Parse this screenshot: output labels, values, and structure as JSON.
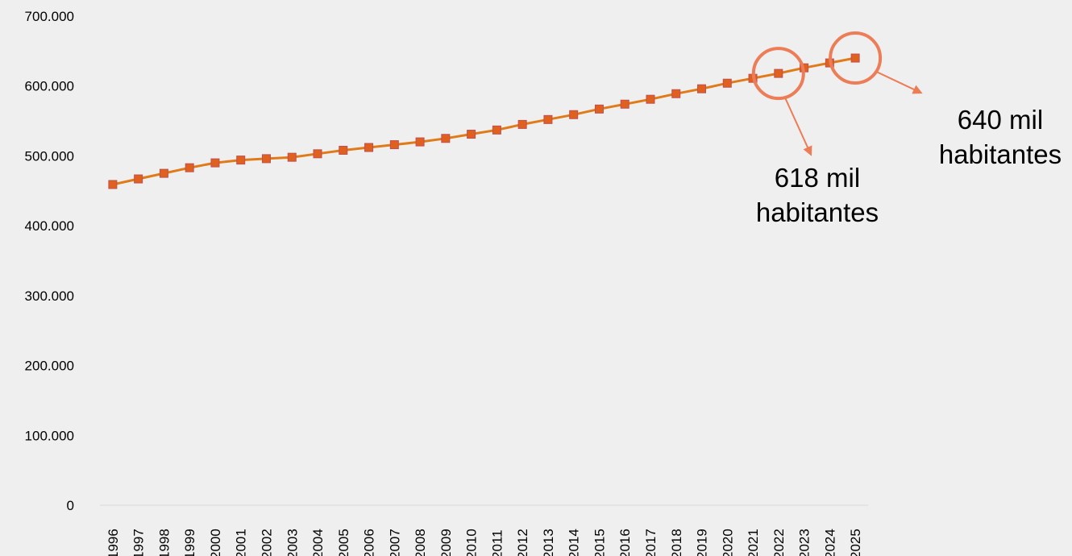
{
  "chart_data": {
    "type": "line",
    "title": "",
    "xlabel": "",
    "ylabel": "",
    "x": [
      "1996",
      "1997",
      "1998",
      "1999",
      "2000",
      "2001",
      "2002",
      "2003",
      "2004",
      "2005",
      "2006",
      "2007",
      "2008",
      "2009",
      "2010",
      "2011",
      "2012",
      "2013",
      "2014",
      "2015",
      "2016",
      "2017",
      "2018",
      "2019",
      "2020",
      "2021",
      "2022",
      "2023",
      "2024",
      "2025"
    ],
    "series": [
      {
        "values": [
          459000,
          467000,
          475000,
          483000,
          490000,
          494000,
          496000,
          498000,
          503000,
          508000,
          512000,
          516000,
          520000,
          525000,
          531000,
          537000,
          545000,
          552000,
          559000,
          567000,
          574000,
          581000,
          589000,
          596000,
          604000,
          611000,
          618000,
          626000,
          633000,
          640000
        ]
      }
    ],
    "ylim": [
      0,
      700000
    ],
    "yticks": [
      {
        "value": 0,
        "label": "0"
      },
      {
        "value": 100000,
        "label": "100.000"
      },
      {
        "value": 200000,
        "label": "200.000"
      },
      {
        "value": 300000,
        "label": "300.000"
      },
      {
        "value": 400000,
        "label": "400.000"
      },
      {
        "value": 500000,
        "label": "500.000"
      },
      {
        "value": 600000,
        "label": "600.000"
      },
      {
        "value": 700000,
        "label": "700.000"
      }
    ],
    "grid": false,
    "legend": "none",
    "colors": {
      "line": "#e07b1a",
      "marker_fill": "#e0601f",
      "marker_edge": "#c0504d",
      "highlight": "#ed7d57",
      "arrow": "#ed7d57"
    },
    "annotations": [
      {
        "year": "2022",
        "line1": "618 mil",
        "line2": "habitantes"
      },
      {
        "year": "2025",
        "line1": "640 mil",
        "line2": "habitantes"
      }
    ]
  }
}
